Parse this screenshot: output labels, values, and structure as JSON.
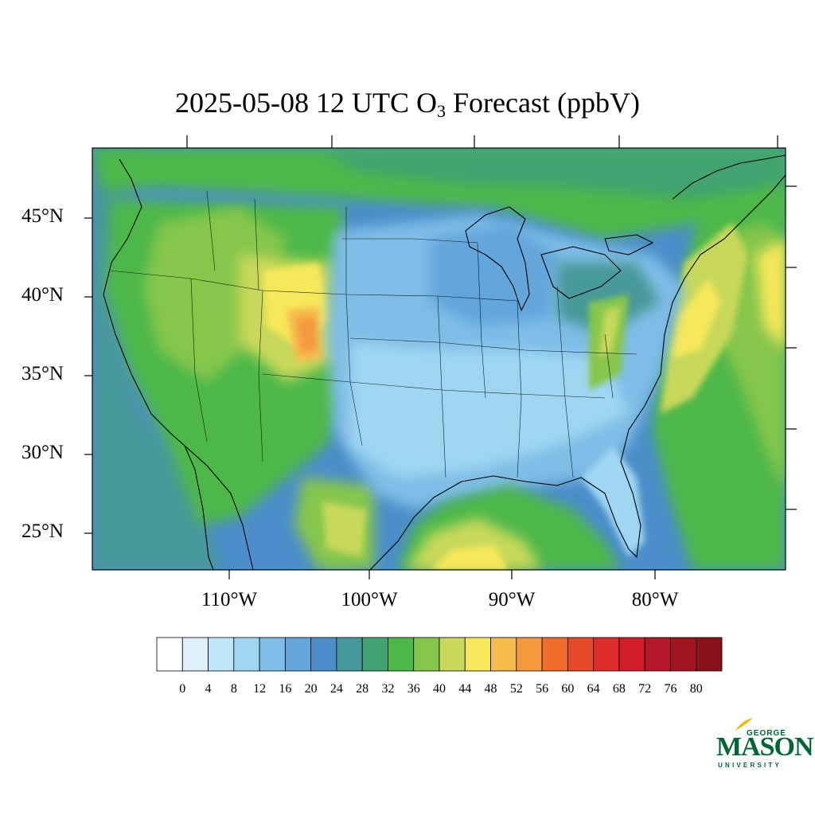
{
  "title": {
    "prefix": "2025-05-08 12 UTC O",
    "subscript": "3",
    "suffix": " Forecast (ppbV)"
  },
  "lat_labels": [
    "45°N",
    "40°N",
    "35°N",
    "30°N",
    "25°N"
  ],
  "lon_labels": [
    "110°W",
    "100°W",
    "90°W",
    "80°W"
  ],
  "colorbar": {
    "colors": [
      "#ffffff",
      "#ddf0fb",
      "#bfe5f8",
      "#9fd7f3",
      "#7fbde6",
      "#64a6dc",
      "#4b8ec9",
      "#46999a",
      "#43a370",
      "#4db84a",
      "#86c64c",
      "#c7d85a",
      "#f7e85a",
      "#f6bb4b",
      "#f49a3c",
      "#ef6e2c",
      "#e64a28",
      "#dd2d28",
      "#d21d2a",
      "#b5182b",
      "#a0151f",
      "#8a121c"
    ],
    "labels": [
      "0",
      "4",
      "8",
      "12",
      "16",
      "20",
      "24",
      "28",
      "32",
      "36",
      "40",
      "44",
      "48",
      "52",
      "56",
      "60",
      "64",
      "68",
      "72",
      "76",
      "80"
    ]
  },
  "logo": {
    "line1": "GEORGE",
    "line2": "MASON",
    "line3": "UNIVERSITY"
  }
}
